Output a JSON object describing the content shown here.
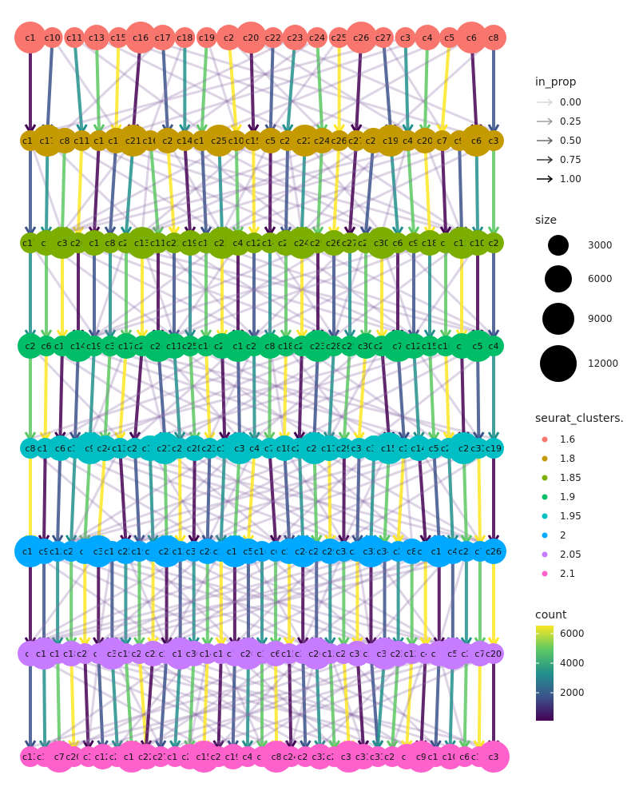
{
  "diagram": {
    "type": "clustree",
    "levels": [
      {
        "resolution": "1.6",
        "color": "#F8766D",
        "clusters": [
          "c1",
          "c10",
          "c11",
          "c13",
          "c15",
          "c16",
          "c17",
          "c18",
          "c19",
          "c2",
          "c20",
          "c22",
          "c23",
          "c24",
          "c25",
          "c26",
          "c27",
          "c3",
          "c4",
          "c5",
          "c6",
          "c8"
        ]
      },
      {
        "resolution": "1.8",
        "color": "#C49A00",
        "clusters": [
          "c13",
          "c17",
          "c8",
          "c11",
          "c1",
          "c12",
          "c21",
          "c16",
          "c2",
          "c14",
          "c18",
          "c25",
          "c10",
          "c15",
          "c5",
          "c23",
          "c22",
          "c24",
          "c26",
          "c27",
          "c28",
          "c19",
          "c4",
          "c20",
          "c7",
          "c9",
          "c6",
          "c3"
        ]
      },
      {
        "resolution": "1.85",
        "color": "#7CAE00",
        "clusters": [
          "c17",
          "c7",
          "c3",
          "c20",
          "c1",
          "c8",
          "c21",
          "c13",
          "c11",
          "c22",
          "c19",
          "c16",
          "c25",
          "c4",
          "c12",
          "c14",
          "c23",
          "c24",
          "c29",
          "c26",
          "c27",
          "c28",
          "c30",
          "c6",
          "c9",
          "c18",
          "c5",
          "c15",
          "c10",
          "c2"
        ]
      },
      {
        "resolution": "1.9",
        "color": "#00BE67",
        "clusters": [
          "c2",
          "c6",
          "c13",
          "c14",
          "c19",
          "c3",
          "c17",
          "c20",
          "c26",
          "c11",
          "c25",
          "c16",
          "c24",
          "c1",
          "c27",
          "c8",
          "c18",
          "c22",
          "c23",
          "c28",
          "c29",
          "c30",
          "c21",
          "c7",
          "c12",
          "c15",
          "c10",
          "c9",
          "c5",
          "c4"
        ]
      },
      {
        "resolution": "1.95",
        "color": "#00BFC4",
        "clusters": [
          "c8",
          "c10",
          "c6",
          "c16",
          "c9",
          "c24",
          "c13",
          "c20",
          "c12",
          "c21",
          "c26",
          "c28",
          "c23",
          "c17",
          "c3",
          "c4",
          "c7",
          "c18",
          "c25",
          "c27",
          "c11",
          "c29",
          "c30",
          "c32",
          "c15",
          "c1",
          "c14",
          "c5",
          "c22",
          "c2",
          "c31",
          "c19"
        ]
      },
      {
        "resolution": "2",
        "color": "#00A9FF",
        "clusters": [
          "c10",
          "c9",
          "c12",
          "c20",
          "c1",
          "c3",
          "c18",
          "c22",
          "c19",
          "c14",
          "c25",
          "c13",
          "c30",
          "c28",
          "c27",
          "c15",
          "c5",
          "c16",
          "c6",
          "c22",
          "c24",
          "c23",
          "c29",
          "c33",
          "c31",
          "c32",
          "c34",
          "c2",
          "c8",
          "c11",
          "c17",
          "c4",
          "c21",
          "c7",
          "c26"
        ]
      },
      {
        "resolution": "2.05",
        "color": "#C77CFF",
        "clusters": [
          "c8",
          "c11",
          "c10",
          "c18",
          "c21",
          "c9",
          "c3",
          "c19",
          "c22",
          "c23",
          "c28",
          "c17",
          "c30",
          "c14",
          "c16",
          "c12",
          "c20",
          "c1",
          "c6",
          "c15",
          "c24",
          "c26",
          "c13",
          "c27",
          "c31",
          "c32",
          "c34",
          "c25",
          "c12",
          "c4",
          "c18",
          "c5",
          "c2",
          "c7",
          "c20"
        ]
      },
      {
        "resolution": "2.1",
        "color": "#FF61CC",
        "clusters": [
          "c13",
          "c14",
          "c7",
          "c20",
          "c1",
          "c12",
          "c25",
          "c18",
          "c22",
          "c27",
          "c17",
          "c26",
          "c15",
          "c29",
          "c19",
          "c4",
          "c5",
          "c8",
          "c24",
          "c23",
          "c32",
          "c28",
          "c30",
          "c31",
          "c33",
          "c21",
          "c2",
          "c9",
          "c16",
          "c10",
          "c6",
          "c11",
          "c3"
        ]
      }
    ]
  },
  "legend": {
    "in_prop": {
      "title": "in_prop",
      "values": [
        "0.00",
        "0.25",
        "0.50",
        "0.75",
        "1.00"
      ]
    },
    "size": {
      "title": "size",
      "values": [
        "3000",
        "6000",
        "9000",
        "12000"
      ]
    },
    "seurat_clusters": {
      "title": "seurat_clusters.",
      "items": [
        {
          "label": "1.6",
          "color": "#F8766D"
        },
        {
          "label": "1.8",
          "color": "#C49A00"
        },
        {
          "label": "1.85",
          "color": "#7CAE00"
        },
        {
          "label": "1.9",
          "color": "#00BE67"
        },
        {
          "label": "1.95",
          "color": "#00BFC4"
        },
        {
          "label": "2",
          "color": "#00A9FF"
        },
        {
          "label": "2.05",
          "color": "#C77CFF"
        },
        {
          "label": "2.1",
          "color": "#FF61CC"
        }
      ]
    },
    "count": {
      "title": "count",
      "ticks": [
        "6000",
        "4000",
        "2000"
      ]
    }
  }
}
